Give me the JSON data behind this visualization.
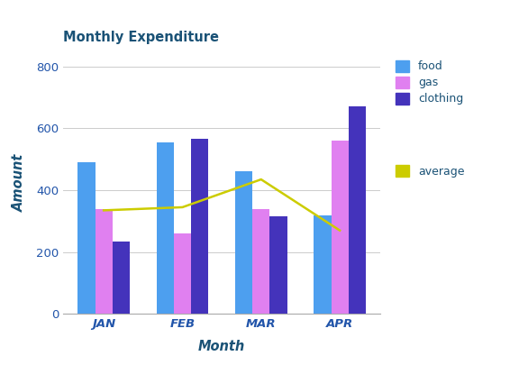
{
  "title": "Monthly Expenditure",
  "xlabel": "Month",
  "ylabel": "Amount",
  "categories": [
    "JAN",
    "FEB",
    "MAR",
    "APR"
  ],
  "food": [
    490,
    555,
    460,
    320
  ],
  "gas": [
    340,
    260,
    340,
    560
  ],
  "clothing": [
    235,
    565,
    315,
    670
  ],
  "average": [
    335,
    345,
    435,
    270
  ],
  "food_color": "#4d9fef",
  "gas_color": "#e080f0",
  "clothing_color": "#4433bb",
  "average_color": "#cccc00",
  "title_color": "#1a5276",
  "axis_label_color": "#1a5276",
  "tick_color": "#2255aa",
  "ylim": [
    0,
    850
  ],
  "yticks": [
    0,
    200,
    400,
    600,
    800
  ],
  "bar_width": 0.22,
  "background_color": "#ffffff",
  "grid_color": "#cccccc"
}
